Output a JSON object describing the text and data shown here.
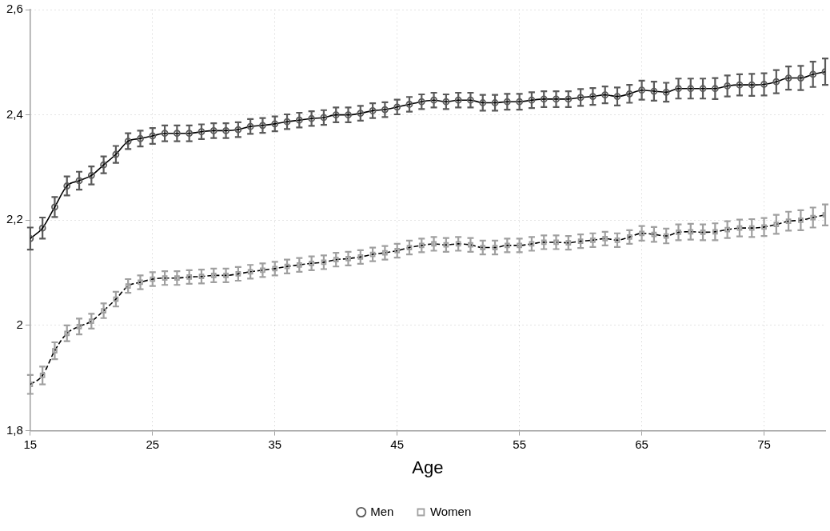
{
  "chart_data": {
    "type": "line",
    "xlabel": "Age",
    "x": [
      15,
      16,
      17,
      18,
      19,
      20,
      21,
      22,
      23,
      24,
      25,
      26,
      27,
      28,
      29,
      30,
      31,
      32,
      33,
      34,
      35,
      36,
      37,
      38,
      39,
      40,
      41,
      42,
      43,
      44,
      45,
      46,
      47,
      48,
      49,
      50,
      51,
      52,
      53,
      54,
      55,
      56,
      57,
      58,
      59,
      60,
      61,
      62,
      63,
      64,
      65,
      66,
      67,
      68,
      69,
      70,
      71,
      72,
      73,
      74,
      75,
      76,
      77,
      78,
      79,
      80
    ],
    "series": [
      {
        "name": "Men",
        "color": "#5a5a5a",
        "marker": "circle",
        "line_style": "solid",
        "values": [
          2.165,
          2.185,
          2.225,
          2.265,
          2.275,
          2.285,
          2.305,
          2.325,
          2.35,
          2.355,
          2.36,
          2.365,
          2.365,
          2.365,
          2.368,
          2.37,
          2.37,
          2.372,
          2.378,
          2.38,
          2.383,
          2.387,
          2.39,
          2.393,
          2.395,
          2.4,
          2.4,
          2.403,
          2.408,
          2.41,
          2.415,
          2.42,
          2.425,
          2.428,
          2.425,
          2.428,
          2.428,
          2.423,
          2.423,
          2.425,
          2.425,
          2.428,
          2.43,
          2.43,
          2.43,
          2.433,
          2.435,
          2.438,
          2.435,
          2.44,
          2.447,
          2.445,
          2.443,
          2.45,
          2.45,
          2.45,
          2.45,
          2.455,
          2.457,
          2.457,
          2.458,
          2.463,
          2.47,
          2.47,
          2.477,
          2.482
        ],
        "errors": [
          0.021,
          0.02,
          0.019,
          0.018,
          0.017,
          0.017,
          0.016,
          0.016,
          0.015,
          0.015,
          0.015,
          0.015,
          0.015,
          0.015,
          0.014,
          0.014,
          0.014,
          0.014,
          0.014,
          0.014,
          0.014,
          0.014,
          0.014,
          0.014,
          0.014,
          0.014,
          0.014,
          0.014,
          0.014,
          0.014,
          0.014,
          0.014,
          0.014,
          0.014,
          0.014,
          0.014,
          0.014,
          0.015,
          0.015,
          0.015,
          0.015,
          0.015,
          0.015,
          0.015,
          0.015,
          0.016,
          0.016,
          0.016,
          0.017,
          0.017,
          0.018,
          0.018,
          0.018,
          0.019,
          0.019,
          0.019,
          0.02,
          0.02,
          0.02,
          0.021,
          0.021,
          0.022,
          0.022,
          0.023,
          0.024,
          0.025
        ]
      },
      {
        "name": "Women",
        "color": "#a0a0a0",
        "marker": "square",
        "line_style": "dashed",
        "values": [
          1.888,
          1.905,
          1.952,
          1.985,
          1.998,
          2.008,
          2.028,
          2.05,
          2.075,
          2.082,
          2.088,
          2.09,
          2.09,
          2.092,
          2.093,
          2.095,
          2.095,
          2.098,
          2.102,
          2.105,
          2.108,
          2.112,
          2.115,
          2.118,
          2.12,
          2.125,
          2.127,
          2.13,
          2.135,
          2.138,
          2.142,
          2.148,
          2.152,
          2.155,
          2.153,
          2.155,
          2.153,
          2.148,
          2.148,
          2.152,
          2.152,
          2.155,
          2.158,
          2.158,
          2.157,
          2.16,
          2.162,
          2.165,
          2.162,
          2.168,
          2.175,
          2.173,
          2.17,
          2.177,
          2.178,
          2.177,
          2.178,
          2.182,
          2.185,
          2.185,
          2.187,
          2.192,
          2.198,
          2.2,
          2.205,
          2.21
        ],
        "errors": [
          0.018,
          0.017,
          0.016,
          0.015,
          0.015,
          0.014,
          0.014,
          0.014,
          0.013,
          0.013,
          0.013,
          0.013,
          0.013,
          0.013,
          0.013,
          0.013,
          0.013,
          0.013,
          0.013,
          0.013,
          0.013,
          0.013,
          0.013,
          0.013,
          0.013,
          0.013,
          0.013,
          0.013,
          0.013,
          0.013,
          0.013,
          0.013,
          0.013,
          0.013,
          0.013,
          0.013,
          0.013,
          0.013,
          0.013,
          0.013,
          0.013,
          0.013,
          0.013,
          0.013,
          0.013,
          0.013,
          0.013,
          0.013,
          0.013,
          0.013,
          0.014,
          0.014,
          0.014,
          0.015,
          0.015,
          0.015,
          0.016,
          0.016,
          0.016,
          0.017,
          0.017,
          0.018,
          0.018,
          0.019,
          0.019,
          0.02
        ]
      }
    ],
    "xlim": [
      15,
      80
    ],
    "xticks": [
      15,
      25,
      35,
      45,
      55,
      65,
      75
    ],
    "ylim": [
      1.8,
      2.6
    ],
    "yticks": [
      {
        "value": 1.8,
        "label": "1,8"
      },
      2,
      {
        "value": 2.2,
        "label": "2,2"
      },
      {
        "value": 2.4,
        "label": "2,4"
      },
      {
        "value": 2.6,
        "label": "2,6"
      }
    ],
    "grid": true,
    "legend": "bottom"
  }
}
